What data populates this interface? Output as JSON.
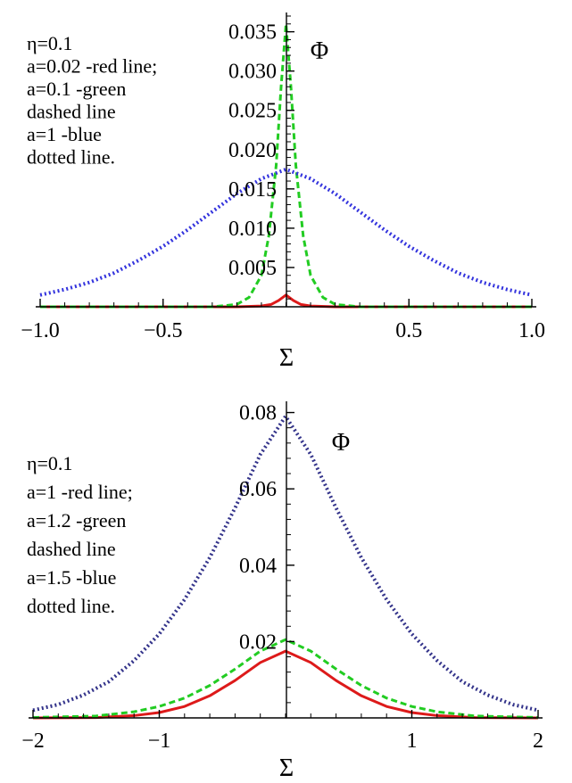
{
  "chart_data": [
    {
      "type": "line",
      "xlabel": "Σ",
      "ylabel": "Φ",
      "xlim": [
        -1.0,
        1.0
      ],
      "ylim": [
        0,
        0.037
      ],
      "x_ticks": [
        -1.0,
        -0.5,
        0.5,
        1.0
      ],
      "x_tick_labels": [
        "−1.0",
        "−0.5",
        "0.5",
        "1.0"
      ],
      "y_ticks": [
        0.005,
        0.01,
        0.015,
        0.02,
        0.025,
        0.03,
        0.035
      ],
      "y_tick_labels": [
        "0.005",
        "0.010",
        "0.015",
        "0.020",
        "0.025",
        "0.030",
        "0.035"
      ],
      "grid": false,
      "annotation_lines": [
        "η=0.1",
        "a=0.02 -red line;",
        "a=0.1 -green",
        "dashed line",
        "a=1 -blue",
        "dotted line."
      ],
      "series": [
        {
          "color": "#dd1a1a",
          "style": "solid",
          "x": [
            -1.0,
            -0.5,
            -0.2,
            -0.1,
            -0.06,
            -0.03,
            0.0,
            0.03,
            0.06,
            0.1,
            0.2,
            0.5,
            1.0
          ],
          "y": [
            0.0,
            0.0,
            0.0,
            0.0001,
            0.0003,
            0.0008,
            0.0015,
            0.0008,
            0.0003,
            0.0001,
            0.0,
            0.0,
            0.0
          ]
        },
        {
          "color": "#22cc22",
          "style": "dashed",
          "x": [
            -1.0,
            -0.3,
            -0.2,
            -0.15,
            -0.1,
            -0.07,
            -0.04,
            -0.02,
            0.0,
            0.02,
            0.04,
            0.07,
            0.1,
            0.15,
            0.2,
            0.3,
            1.0
          ],
          "y": [
            0.0,
            0.0,
            0.0003,
            0.0012,
            0.004,
            0.009,
            0.018,
            0.028,
            0.036,
            0.028,
            0.018,
            0.009,
            0.004,
            0.0012,
            0.0003,
            0.0,
            0.0
          ]
        },
        {
          "color": "#3333dd",
          "style": "dotted",
          "x": [
            -1.0,
            -0.9,
            -0.8,
            -0.7,
            -0.6,
            -0.5,
            -0.4,
            -0.3,
            -0.2,
            -0.1,
            0.0,
            0.1,
            0.2,
            0.3,
            0.4,
            0.5,
            0.6,
            0.7,
            0.8,
            0.9,
            1.0
          ],
          "y": [
            0.0015,
            0.0022,
            0.0031,
            0.0043,
            0.0059,
            0.0077,
            0.0098,
            0.0121,
            0.0144,
            0.0163,
            0.0175,
            0.0163,
            0.0144,
            0.0121,
            0.0098,
            0.0077,
            0.0059,
            0.0043,
            0.0031,
            0.0022,
            0.0015
          ]
        }
      ]
    },
    {
      "type": "line",
      "xlabel": "Σ",
      "ylabel": "Φ",
      "xlim": [
        -2,
        2
      ],
      "ylim": [
        0,
        0.082
      ],
      "x_ticks": [
        -2,
        -1,
        1,
        2
      ],
      "x_tick_labels": [
        "−2",
        "−1",
        "1",
        "2"
      ],
      "y_ticks": [
        0.02,
        0.04,
        0.06,
        0.08
      ],
      "y_tick_labels": [
        "0.02",
        "0.04",
        "0.06",
        "0.08"
      ],
      "grid": false,
      "annotation_lines": [
        "η=0.1",
        "a=1 -red line;",
        "a=1.2 -green",
        "dashed line",
        "a=1.5 -blue",
        "dotted line."
      ],
      "series": [
        {
          "color": "#dd1a1a",
          "style": "solid",
          "x": [
            -2.0,
            -1.5,
            -1.2,
            -1.0,
            -0.8,
            -0.6,
            -0.4,
            -0.2,
            0.0,
            0.2,
            0.4,
            0.6,
            0.8,
            1.0,
            1.2,
            1.5,
            2.0
          ],
          "y": [
            0.0,
            0.0001,
            0.0006,
            0.0014,
            0.003,
            0.0058,
            0.0098,
            0.0145,
            0.0175,
            0.0145,
            0.0098,
            0.0058,
            0.003,
            0.0014,
            0.0006,
            0.0001,
            0.0
          ]
        },
        {
          "color": "#22cc22",
          "style": "dashed",
          "x": [
            -2.0,
            -1.5,
            -1.2,
            -1.0,
            -0.8,
            -0.6,
            -0.4,
            -0.2,
            0.0,
            0.2,
            0.4,
            0.6,
            0.8,
            1.0,
            1.2,
            1.5,
            2.0
          ],
          "y": [
            0.0001,
            0.0005,
            0.0016,
            0.003,
            0.0052,
            0.0085,
            0.0128,
            0.0175,
            0.0205,
            0.0175,
            0.0128,
            0.0085,
            0.0052,
            0.003,
            0.0016,
            0.0005,
            0.0001
          ]
        },
        {
          "color": "#33338a",
          "style": "dotted",
          "x": [
            -2.0,
            -1.8,
            -1.6,
            -1.4,
            -1.2,
            -1.0,
            -0.8,
            -0.6,
            -0.4,
            -0.2,
            0.0,
            0.2,
            0.4,
            0.6,
            0.8,
            1.0,
            1.2,
            1.4,
            1.6,
            1.8,
            2.0
          ],
          "y": [
            0.002,
            0.0035,
            0.006,
            0.0095,
            0.015,
            0.022,
            0.031,
            0.042,
            0.055,
            0.069,
            0.079,
            0.069,
            0.055,
            0.042,
            0.031,
            0.022,
            0.015,
            0.0095,
            0.006,
            0.0035,
            0.002
          ]
        }
      ]
    }
  ]
}
